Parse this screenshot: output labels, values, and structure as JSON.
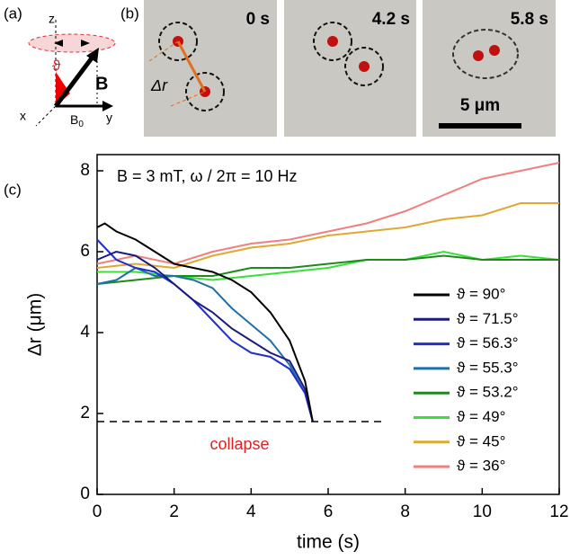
{
  "panels": {
    "a": {
      "label": "(a)",
      "axes": [
        "z",
        "x",
        "y"
      ],
      "angle": "ϑ",
      "field": "B",
      "field0": "B",
      "field0_sub": "0"
    },
    "b": {
      "label": "(b)",
      "times": [
        "0 s",
        "4.2 s",
        "5.8 s"
      ],
      "distance": "Δr",
      "scale": "5 μm"
    },
    "c": {
      "label": "(c)"
    }
  },
  "chart_data": {
    "type": "line",
    "annotation": "B = 3 mT, ω / 2π  = 10 Hz",
    "collapse_label": "collapse",
    "reference_line": {
      "y": 1.8,
      "x": [
        0,
        7.5
      ]
    },
    "x_label": "time (s)",
    "y_label": "Δr (μm)",
    "xlim": [
      0,
      12
    ],
    "xticks": [
      0,
      2,
      4,
      6,
      8,
      10,
      12
    ],
    "ylim": [
      0,
      8.4
    ],
    "yticks": [
      0,
      2,
      4,
      6,
      8
    ],
    "legend": "lower right",
    "series": [
      {
        "name": "ϑ = 90°",
        "color": "#000000",
        "x": [
          0,
          0.2,
          0.5,
          1,
          1.5,
          2,
          2.5,
          3,
          3.5,
          4,
          4.5,
          5,
          5.4,
          5.6
        ],
        "values": [
          6.6,
          6.7,
          6.5,
          6.3,
          6.0,
          5.7,
          5.6,
          5.5,
          5.3,
          5.0,
          4.5,
          3.8,
          2.8,
          1.8
        ]
      },
      {
        "name": "ϑ = 71.5°",
        "color": "#1a1a80",
        "x": [
          0,
          0.5,
          1,
          1.5,
          2,
          2.5,
          3,
          3.5,
          4,
          4.5,
          5,
          5.4,
          5.6
        ],
        "values": [
          5.8,
          6.0,
          5.9,
          5.6,
          5.2,
          4.8,
          4.5,
          4.1,
          3.8,
          3.5,
          3.3,
          2.6,
          1.8
        ]
      },
      {
        "name": "ϑ = 56.3°",
        "color": "#1f2fd0",
        "x": [
          0,
          0.5,
          1,
          1.5,
          2,
          2.5,
          3,
          3.5,
          4,
          4.5,
          5,
          5.4,
          5.6
        ],
        "values": [
          6.3,
          5.8,
          5.6,
          5.5,
          5.2,
          4.8,
          4.3,
          3.8,
          3.5,
          3.4,
          3.1,
          2.5,
          1.8
        ]
      },
      {
        "name": "ϑ = 55.3°",
        "color": "#1f6fa8",
        "x": [
          0,
          0.5,
          1,
          1.5,
          2,
          2.5,
          3,
          3.5,
          4,
          4.5,
          5,
          5.4,
          5.6
        ],
        "values": [
          5.2,
          5.3,
          5.6,
          5.4,
          5.4,
          5.3,
          5.1,
          4.6,
          4.2,
          3.8,
          3.2,
          2.5,
          1.8
        ]
      },
      {
        "name": "ϑ = 53.2°",
        "color": "#1e8a1e",
        "x": [
          0,
          1,
          2,
          3,
          4,
          5,
          6,
          7,
          8,
          9,
          10,
          11,
          12
        ],
        "values": [
          5.2,
          5.3,
          5.4,
          5.4,
          5.6,
          5.6,
          5.7,
          5.8,
          5.8,
          5.9,
          5.8,
          5.8,
          5.8
        ]
      },
      {
        "name": "ϑ = 49°",
        "color": "#3adf3a",
        "x": [
          0,
          1,
          2,
          3,
          4,
          5,
          6,
          7,
          8,
          9,
          10,
          11,
          12
        ],
        "values": [
          5.5,
          5.5,
          5.4,
          5.3,
          5.4,
          5.5,
          5.6,
          5.8,
          5.8,
          6.0,
          5.8,
          5.9,
          5.8
        ]
      },
      {
        "name": "ϑ = 45°",
        "color": "#e0a830",
        "x": [
          0,
          1,
          2,
          3,
          4,
          5,
          6,
          7,
          8,
          9,
          10,
          11,
          12
        ],
        "values": [
          5.6,
          5.7,
          5.6,
          5.9,
          6.1,
          6.2,
          6.4,
          6.5,
          6.6,
          6.8,
          6.9,
          7.2,
          7.2
        ]
      },
      {
        "name": "ϑ = 36°",
        "color": "#f08080",
        "x": [
          0,
          1,
          2,
          3,
          4,
          5,
          6,
          7,
          8,
          9,
          10,
          11,
          12
        ],
        "values": [
          5.7,
          5.9,
          5.7,
          6.0,
          6.2,
          6.3,
          6.5,
          6.7,
          7.0,
          7.4,
          7.8,
          8.0,
          8.2
        ]
      }
    ]
  }
}
